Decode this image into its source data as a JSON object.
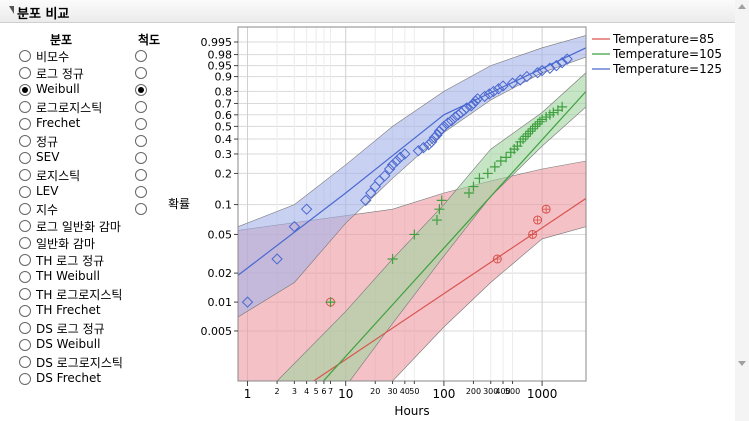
{
  "panel": {
    "title": "분포 비교"
  },
  "columns": {
    "distribution": "분포",
    "scale": "척도"
  },
  "distributions": [
    {
      "label": "비모수",
      "dist_selected": false,
      "scale_selected": false,
      "has_scale": true
    },
    {
      "label": "로그 정규",
      "dist_selected": false,
      "scale_selected": false,
      "has_scale": true
    },
    {
      "label": "Weibull",
      "dist_selected": true,
      "scale_selected": true,
      "has_scale": true
    },
    {
      "label": "로그로지스틱",
      "dist_selected": false,
      "scale_selected": false,
      "has_scale": true
    },
    {
      "label": "Frechet",
      "dist_selected": false,
      "scale_selected": false,
      "has_scale": true
    },
    {
      "label": "정규",
      "dist_selected": false,
      "scale_selected": false,
      "has_scale": true
    },
    {
      "label": "SEV",
      "dist_selected": false,
      "scale_selected": false,
      "has_scale": true
    },
    {
      "label": "로지스틱",
      "dist_selected": false,
      "scale_selected": false,
      "has_scale": true
    },
    {
      "label": "LEV",
      "dist_selected": false,
      "scale_selected": false,
      "has_scale": true
    },
    {
      "label": "지수",
      "dist_selected": false,
      "scale_selected": false,
      "has_scale": true
    },
    {
      "label": "로그 일반화 감마",
      "dist_selected": false,
      "scale_selected": false,
      "has_scale": false
    },
    {
      "label": "일반화 감마",
      "dist_selected": false,
      "scale_selected": false,
      "has_scale": false
    },
    {
      "label": "TH 로그 정규",
      "dist_selected": false,
      "scale_selected": false,
      "has_scale": false
    },
    {
      "label": "TH Weibull",
      "dist_selected": false,
      "scale_selected": false,
      "has_scale": false
    },
    {
      "label": "TH 로그로지스틱",
      "dist_selected": false,
      "scale_selected": false,
      "has_scale": false
    },
    {
      "label": "TH Frechet",
      "dist_selected": false,
      "scale_selected": false,
      "has_scale": false
    },
    {
      "label": "DS 로그 정규",
      "dist_selected": false,
      "scale_selected": false,
      "has_scale": false
    },
    {
      "label": "DS Weibull",
      "dist_selected": false,
      "scale_selected": false,
      "has_scale": false
    },
    {
      "label": "DS 로그로지스틱",
      "dist_selected": false,
      "scale_selected": false,
      "has_scale": false
    },
    {
      "label": "DS Frechet",
      "dist_selected": false,
      "scale_selected": false,
      "has_scale": false
    }
  ],
  "chart_data": {
    "type": "scatter",
    "xlabel": "Hours",
    "ylabel": "확률",
    "x_scale": "log",
    "y_scale": "weibull",
    "xlim": [
      0.8,
      2800
    ],
    "ylim": [
      0.0015,
      0.9995
    ],
    "grid": true,
    "legend_position": "right",
    "x_ticks": [
      {
        "value": 1,
        "label": "1",
        "major": true
      },
      {
        "value": 2,
        "label": "2",
        "major": false
      },
      {
        "value": 3,
        "label": "3",
        "major": false
      },
      {
        "value": 4,
        "label": "4",
        "major": false
      },
      {
        "value": 5,
        "label": "5",
        "major": false
      },
      {
        "value": 6,
        "label": "6",
        "major": false
      },
      {
        "value": 7,
        "label": "7",
        "major": false
      },
      {
        "value": 10,
        "label": "10",
        "major": true
      },
      {
        "value": 20,
        "label": "20",
        "major": false
      },
      {
        "value": 30,
        "label": "30",
        "major": false
      },
      {
        "value": 40,
        "label": "40",
        "major": false
      },
      {
        "value": 50,
        "label": "50",
        "major": false
      },
      {
        "value": 100,
        "label": "100",
        "major": true
      },
      {
        "value": 200,
        "label": "200",
        "major": false
      },
      {
        "value": 300,
        "label": "300",
        "major": false
      },
      {
        "value": 400,
        "label": "400",
        "major": false
      },
      {
        "value": 500,
        "label": "500",
        "major": false
      },
      {
        "value": 1000,
        "label": "1000",
        "major": true
      }
    ],
    "y_ticks": [
      0.995,
      0.98,
      0.95,
      0.9,
      0.8,
      0.7,
      0.6,
      0.5,
      0.4,
      0.3,
      0.2,
      0.1,
      0.05,
      0.02,
      0.01,
      0.005
    ],
    "series": [
      {
        "name": "Temperature=85",
        "color": "#d9534f",
        "band_color": "#ec9aa0",
        "marker": "circle-plus",
        "line": [
          [
            3,
            0.0011
          ],
          [
            2800,
            0.115
          ]
        ],
        "band_upper": [
          [
            0.8,
            0.055
          ],
          [
            30,
            0.09
          ],
          [
            100,
            0.13
          ],
          [
            300,
            0.17
          ],
          [
            1000,
            0.22
          ],
          [
            2800,
            0.26
          ]
        ],
        "band_lower": [
          [
            30,
            0.0015
          ],
          [
            100,
            0.0055
          ],
          [
            300,
            0.016
          ],
          [
            1000,
            0.045
          ],
          [
            2800,
            0.06
          ]
        ],
        "points": [
          [
            7,
            0.01
          ],
          [
            350,
            0.028
          ],
          [
            800,
            0.05
          ],
          [
            900,
            0.07
          ],
          [
            1100,
            0.09
          ]
        ]
      },
      {
        "name": "Temperature=105",
        "color": "#3fa03f",
        "band_color": "#9fd49f",
        "marker": "plus",
        "line": [
          [
            4.5,
            0.0011
          ],
          [
            2800,
            0.8
          ]
        ],
        "band_upper": [
          [
            2,
            0.0015
          ],
          [
            10,
            0.008
          ],
          [
            30,
            0.028
          ],
          [
            100,
            0.1
          ],
          [
            300,
            0.33
          ],
          [
            1000,
            0.62
          ],
          [
            2800,
            0.92
          ]
        ],
        "band_lower": [
          [
            11,
            0.0015
          ],
          [
            30,
            0.006
          ],
          [
            100,
            0.03
          ],
          [
            300,
            0.12
          ],
          [
            1000,
            0.35
          ],
          [
            2800,
            0.67
          ]
        ],
        "points": [
          [
            7,
            0.01
          ],
          [
            30,
            0.028
          ],
          [
            50,
            0.05
          ],
          [
            85,
            0.07
          ],
          [
            90,
            0.09
          ],
          [
            95,
            0.11
          ],
          [
            180,
            0.13
          ],
          [
            200,
            0.15
          ],
          [
            230,
            0.18
          ],
          [
            280,
            0.2
          ],
          [
            330,
            0.23
          ],
          [
            380,
            0.26
          ],
          [
            430,
            0.28
          ],
          [
            480,
            0.31
          ],
          [
            520,
            0.33
          ],
          [
            560,
            0.35
          ],
          [
            600,
            0.38
          ],
          [
            640,
            0.4
          ],
          [
            680,
            0.42
          ],
          [
            720,
            0.44
          ],
          [
            760,
            0.46
          ],
          [
            800,
            0.48
          ],
          [
            850,
            0.5
          ],
          [
            900,
            0.52
          ],
          [
            950,
            0.54
          ],
          [
            1000,
            0.56
          ],
          [
            1100,
            0.58
          ],
          [
            1200,
            0.6
          ],
          [
            1300,
            0.62
          ],
          [
            1450,
            0.64
          ],
          [
            1600,
            0.67
          ]
        ]
      },
      {
        "name": "Temperature=125",
        "color": "#4a68d0",
        "band_color": "#a4b3e8",
        "marker": "diamond",
        "line": [
          [
            0.8,
            0.019
          ],
          [
            10,
            0.13
          ],
          [
            100,
            0.6
          ],
          [
            2800,
            0.99
          ]
        ],
        "band_upper": [
          [
            0.8,
            0.06
          ],
          [
            3,
            0.1
          ],
          [
            10,
            0.24
          ],
          [
            30,
            0.5
          ],
          [
            100,
            0.8
          ],
          [
            300,
            0.95
          ],
          [
            1000,
            0.99
          ],
          [
            2800,
            0.998
          ]
        ],
        "band_lower": [
          [
            0.8,
            0.007
          ],
          [
            3,
            0.016
          ],
          [
            10,
            0.065
          ],
          [
            30,
            0.18
          ],
          [
            100,
            0.45
          ],
          [
            300,
            0.73
          ],
          [
            1000,
            0.92
          ],
          [
            2800,
            0.975
          ]
        ],
        "points": [
          [
            1,
            0.01
          ],
          [
            2,
            0.028
          ],
          [
            3,
            0.06
          ],
          [
            4,
            0.09
          ],
          [
            16,
            0.11
          ],
          [
            18,
            0.13
          ],
          [
            20,
            0.15
          ],
          [
            22,
            0.17
          ],
          [
            25,
            0.19
          ],
          [
            28,
            0.22
          ],
          [
            30,
            0.24
          ],
          [
            33,
            0.26
          ],
          [
            36,
            0.28
          ],
          [
            40,
            0.3
          ],
          [
            55,
            0.32
          ],
          [
            62,
            0.34
          ],
          [
            70,
            0.36
          ],
          [
            75,
            0.38
          ],
          [
            80,
            0.41
          ],
          [
            85,
            0.43
          ],
          [
            90,
            0.46
          ],
          [
            95,
            0.48
          ],
          [
            100,
            0.5
          ],
          [
            110,
            0.53
          ],
          [
            120,
            0.55
          ],
          [
            130,
            0.58
          ],
          [
            140,
            0.6
          ],
          [
            150,
            0.62
          ],
          [
            160,
            0.64
          ],
          [
            170,
            0.66
          ],
          [
            190,
            0.68
          ],
          [
            200,
            0.7
          ],
          [
            210,
            0.72
          ],
          [
            220,
            0.74
          ],
          [
            260,
            0.76
          ],
          [
            290,
            0.78
          ],
          [
            320,
            0.8
          ],
          [
            360,
            0.82
          ],
          [
            400,
            0.84
          ],
          [
            500,
            0.86
          ],
          [
            600,
            0.88
          ],
          [
            700,
            0.9
          ],
          [
            900,
            0.92
          ],
          [
            1000,
            0.93
          ],
          [
            1200,
            0.94
          ],
          [
            1400,
            0.95
          ],
          [
            1600,
            0.96
          ],
          [
            1800,
            0.97
          ]
        ]
      }
    ]
  }
}
